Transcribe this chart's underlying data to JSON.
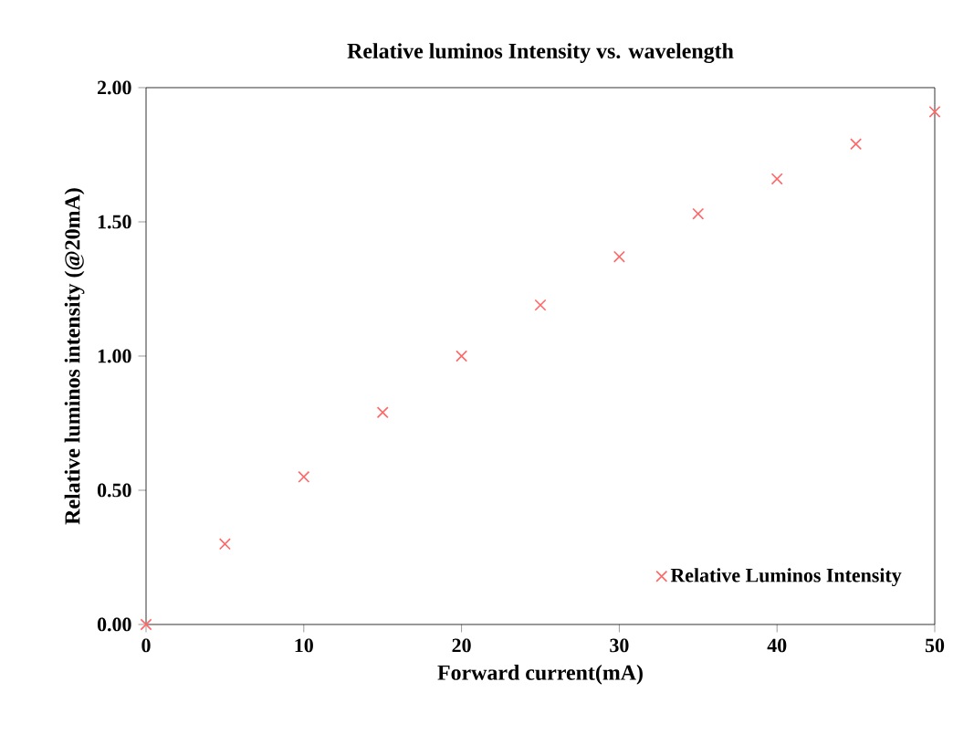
{
  "chart_data": {
    "type": "scatter",
    "title": "Relative luminos Intensity vs. wavelength",
    "xlabel": "Forward current(mA)",
    "ylabel": "Relative luminos intensity (@20mA)",
    "x": [
      0,
      5,
      10,
      15,
      20,
      25,
      30,
      35,
      40,
      45,
      50
    ],
    "series": [
      {
        "name": "Relative Luminos Intensity",
        "color": "#ff6666",
        "values": [
          0,
          0.3,
          0.55,
          0.79,
          1.0,
          1.19,
          1.37,
          1.53,
          1.66,
          1.79,
          1.91
        ]
      }
    ],
    "xlim": [
      0,
      50
    ],
    "xticks": [
      0,
      10,
      20,
      30,
      40,
      50
    ],
    "ylim": [
      0,
      2
    ],
    "yticks": [
      {
        "value": 0,
        "label": "0.00"
      },
      {
        "value": 0.5,
        "label": "0.50"
      },
      {
        "value": 1,
        "label": "1.00"
      },
      {
        "value": 1.5,
        "label": "1.50"
      },
      {
        "value": 2,
        "label": "2.00"
      }
    ],
    "marker": "cross",
    "legend": "bottom right",
    "grid": false
  }
}
